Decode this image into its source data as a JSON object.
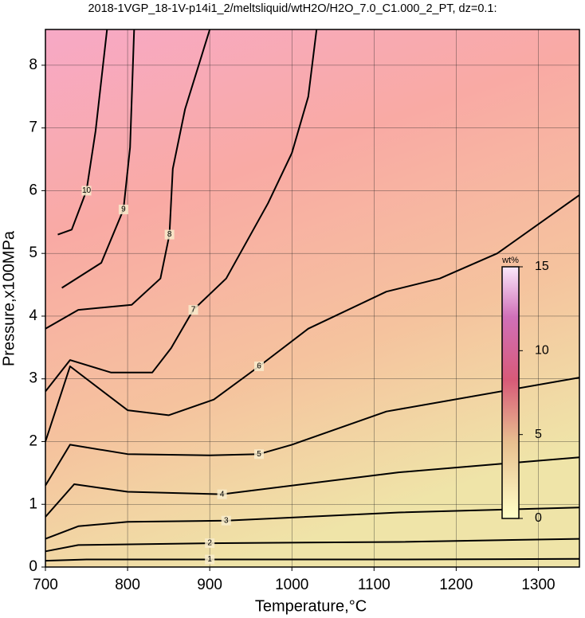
{
  "chart_data": {
    "type": "contour",
    "title": "2018-1VGP_18-1V-p14i1_2/meltsliquid/wtH2O/H2O_7.0_C1.000_2_PT, dz=0.1:",
    "x_label": "Temperature,°C",
    "y_label": "Pressure,x100MPa",
    "xlim": [
      700,
      1350
    ],
    "ylim": [
      0,
      8.57
    ],
    "xticks": [
      700,
      800,
      900,
      1000,
      1100,
      1200,
      1300
    ],
    "yticks": [
      0,
      1,
      2,
      3,
      4,
      5,
      6,
      7,
      8
    ],
    "grid": true,
    "series": [
      {
        "name": "1",
        "x": [
          700,
          750,
          900,
          1130,
          1350
        ],
        "y": [
          0.1,
          0.12,
          0.12,
          0.12,
          0.13
        ]
      },
      {
        "name": "2",
        "x": [
          700,
          740,
          900,
          1130,
          1350
        ],
        "y": [
          0.25,
          0.35,
          0.38,
          0.4,
          0.45
        ]
      },
      {
        "name": "3",
        "x": [
          700,
          740,
          800,
          920,
          1130,
          1350
        ],
        "y": [
          0.45,
          0.65,
          0.72,
          0.74,
          0.87,
          0.95
        ]
      },
      {
        "name": "4",
        "x": [
          700,
          735,
          800,
          915,
          1130,
          1350
        ],
        "y": [
          0.8,
          1.32,
          1.2,
          1.16,
          1.51,
          1.75
        ]
      },
      {
        "name": "5",
        "x": [
          700,
          730,
          800,
          900,
          960,
          1000,
          1115,
          1350
        ],
        "y": [
          1.3,
          1.95,
          1.8,
          1.78,
          1.8,
          1.95,
          2.48,
          3.02
        ]
      },
      {
        "name": "6",
        "x": [
          700,
          730,
          800,
          850,
          905,
          960,
          1020,
          1115,
          1180,
          1250,
          1350
        ],
        "y": [
          2.0,
          3.2,
          2.5,
          2.42,
          2.67,
          3.2,
          3.8,
          4.39,
          4.6,
          5.0,
          5.93
        ]
      },
      {
        "name": "7",
        "x": [
          700,
          730,
          780,
          830,
          853,
          880,
          920,
          971,
          1000,
          1020,
          1030
        ],
        "y": [
          2.8,
          3.3,
          3.1,
          3.1,
          3.49,
          4.1,
          4.6,
          5.8,
          6.6,
          7.5,
          8.57
        ]
      },
      {
        "name": "8",
        "x": [
          700,
          740,
          805,
          840,
          851,
          855,
          870,
          900
        ],
        "y": [
          3.8,
          4.1,
          4.18,
          4.6,
          5.3,
          6.35,
          7.3,
          8.57
        ]
      },
      {
        "name": "9",
        "x": [
          720,
          768,
          795,
          803,
          808
        ],
        "y": [
          4.45,
          4.85,
          5.7,
          6.69,
          8.57
        ]
      },
      {
        "name": "10",
        "x": [
          715,
          732,
          750,
          761,
          775
        ],
        "y": [
          5.3,
          5.38,
          6.0,
          6.95,
          8.57
        ]
      }
    ],
    "colorbar": {
      "label": "wt%",
      "lim": [
        0,
        15
      ],
      "ticks": [
        0,
        5,
        10,
        15
      ]
    }
  }
}
